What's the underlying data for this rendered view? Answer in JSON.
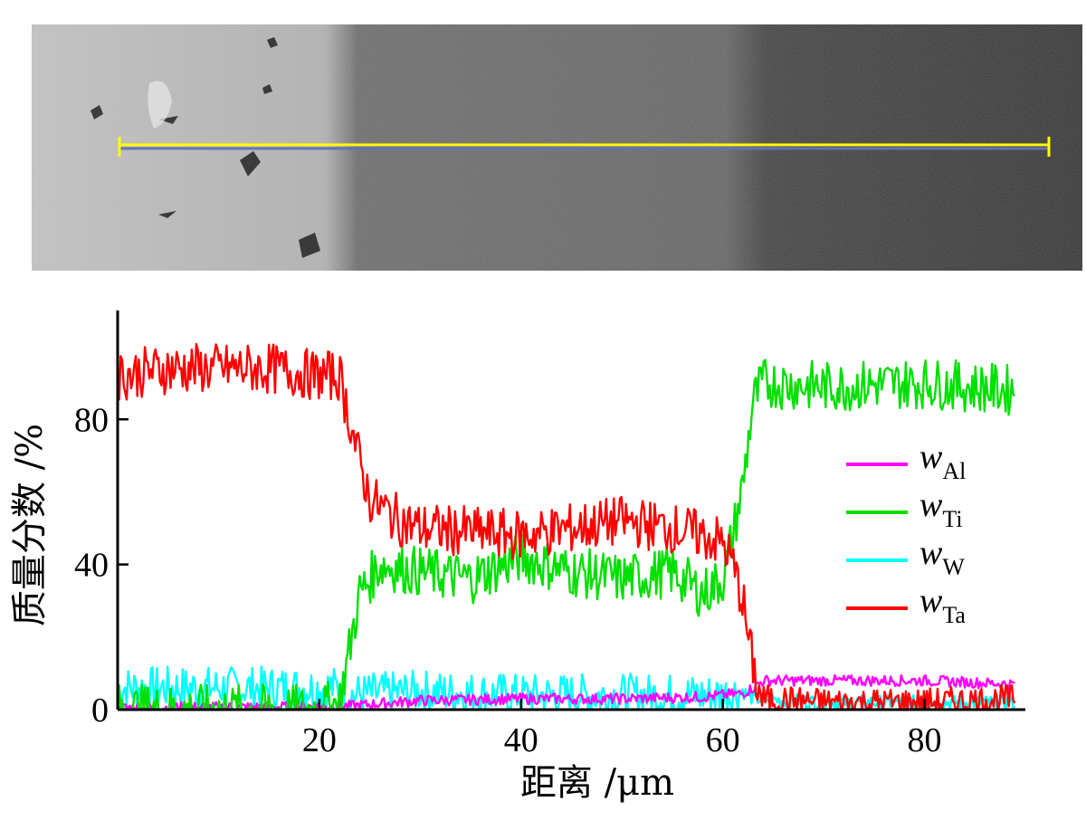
{
  "chart_data": {
    "type": "line",
    "xlabel": "距离 /μm",
    "ylabel": "质量分数 /%",
    "xlim": [
      0,
      90
    ],
    "ylim": [
      0,
      110
    ],
    "x_ticks": [
      "20",
      "40",
      "60",
      "80"
    ],
    "y_ticks": [
      "0",
      "40",
      "80"
    ],
    "legend_position": "right",
    "series": [
      {
        "name": "w",
        "subscript": "Al",
        "color": "#ff00ff",
        "x": [
          0,
          20,
          23,
          30,
          40,
          50,
          58,
          62,
          63,
          64,
          70,
          80,
          89
        ],
        "values": [
          0.5,
          0.8,
          1,
          2.5,
          3,
          3,
          3.5,
          4.5,
          6,
          8,
          8,
          8,
          7
        ]
      },
      {
        "name": "w",
        "subscript": "Ti",
        "color": "#00e000",
        "x": [
          0,
          20,
          22,
          24,
          26,
          30,
          35,
          40,
          45,
          50,
          55,
          58,
          60,
          61,
          62,
          63,
          64,
          70,
          80,
          89
        ],
        "values": [
          0,
          0,
          2,
          32,
          40,
          38,
          36,
          42,
          38,
          36,
          38,
          32,
          36,
          48,
          62,
          85,
          90,
          89,
          90,
          88
        ]
      },
      {
        "name": "w",
        "subscript": "W",
        "color": "#00ffff",
        "x": [
          0,
          10,
          20,
          22,
          23,
          30,
          40,
          50,
          60,
          62,
          63,
          70,
          80,
          89
        ],
        "values": [
          6,
          6,
          6,
          6,
          4,
          5,
          4,
          4,
          4,
          5,
          3,
          2,
          2,
          2
        ]
      },
      {
        "name": "w",
        "subscript": "Ta",
        "color": "#ff0000",
        "x": [
          0,
          5,
          10,
          15,
          20,
          22,
          24,
          25,
          28,
          30,
          40,
          45,
          50,
          55,
          58,
          60,
          61,
          62,
          62.5,
          63.5,
          64,
          70,
          80,
          89
        ],
        "values": [
          92,
          94,
          94,
          94,
          92,
          92,
          68,
          58,
          52,
          50,
          48,
          50,
          52,
          50,
          48,
          46,
          40,
          30,
          20,
          5,
          3,
          2,
          2,
          3
        ]
      }
    ]
  },
  "sem_image": {
    "description_label": "",
    "line_color": "#ffff00"
  }
}
